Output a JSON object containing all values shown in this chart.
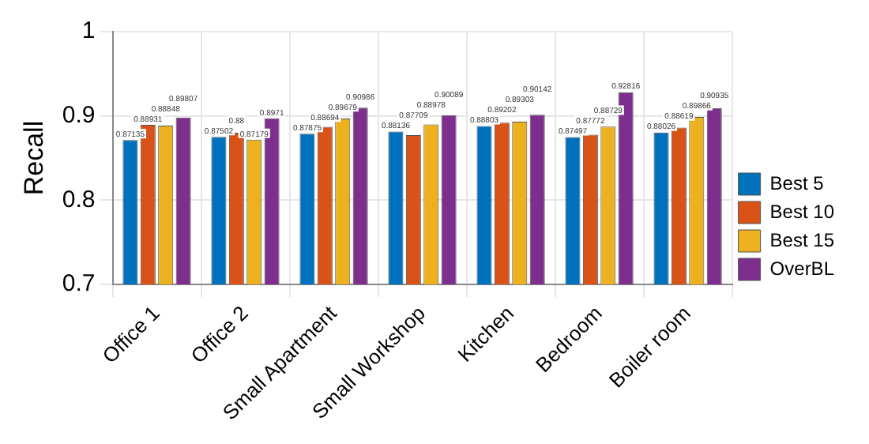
{
  "chart_data": {
    "type": "bar",
    "ylabel": "Recall",
    "categories": [
      "Office 1",
      "Office 2",
      "Small Apartment",
      "Small Workshop",
      "Kitchen",
      "Bedroom",
      "Boiler room"
    ],
    "series": [
      {
        "name": "Best 5",
        "color": "#0072bd",
        "values": [
          0.87135,
          0.87502,
          0.87875,
          0.88136,
          0.88803,
          0.87497,
          0.88026
        ]
      },
      {
        "name": "Best 10",
        "color": "#d95319",
        "values": [
          0.88931,
          0.88,
          0.88694,
          0.87709,
          0.89202,
          0.87772,
          0.88619
        ]
      },
      {
        "name": "Best 15",
        "color": "#edb120",
        "values": [
          0.88848,
          0.87179,
          0.89679,
          0.88978,
          0.89303,
          0.88729,
          0.89866
        ]
      },
      {
        "name": "OverBL",
        "color": "#7e2f8e",
        "values": [
          0.89807,
          0.8971,
          0.90986,
          0.90089,
          0.90142,
          0.92816,
          0.90935
        ]
      }
    ],
    "ylim": [
      0.7,
      1
    ],
    "yticks": [
      0.7,
      0.8,
      0.9,
      1
    ],
    "grid": true,
    "legend": "right",
    "data_labels": true
  }
}
